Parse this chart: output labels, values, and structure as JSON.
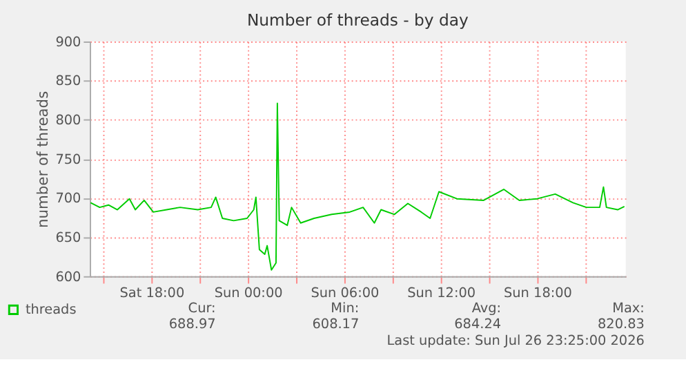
{
  "chart_data": {
    "type": "line",
    "title": "Number of threads - by day",
    "ylabel": "number of threads",
    "x": [
      "2026-07-25T14:13",
      "2026-07-25T14:47",
      "2026-07-25T15:20",
      "2026-07-25T15:53",
      "2026-07-25T16:38",
      "2026-07-25T17:00",
      "2026-07-25T17:33",
      "2026-07-25T18:07",
      "2026-07-25T18:57",
      "2026-07-25T19:47",
      "2026-07-25T20:53",
      "2026-07-25T21:43",
      "2026-07-25T22:00",
      "2026-07-25T22:25",
      "2026-07-25T23:07",
      "2026-07-25T23:57",
      "2026-07-26T00:22",
      "2026-07-26T00:30",
      "2026-07-26T00:43",
      "2026-07-26T01:03",
      "2026-07-26T01:12",
      "2026-07-26T01:28",
      "2026-07-26T01:45",
      "2026-07-26T01:50",
      "2026-07-26T01:57",
      "2026-07-26T02:27",
      "2026-07-26T02:43",
      "2026-07-26T03:17",
      "2026-07-26T04:07",
      "2026-07-26T05:13",
      "2026-07-26T06:20",
      "2026-07-26T07:10",
      "2026-07-26T07:52",
      "2026-07-26T08:17",
      "2026-07-26T09:07",
      "2026-07-26T09:57",
      "2026-07-26T10:47",
      "2026-07-26T11:20",
      "2026-07-26T11:53",
      "2026-07-26T13:00",
      "2026-07-26T14:40",
      "2026-07-26T15:55",
      "2026-07-26T16:53",
      "2026-07-26T18:00",
      "2026-07-26T19:07",
      "2026-07-26T20:13",
      "2026-07-26T21:03",
      "2026-07-26T21:53",
      "2026-07-26T22:07",
      "2026-07-26T22:18",
      "2026-07-26T23:00",
      "2026-07-26T23:25"
    ],
    "series": [
      {
        "name": "threads",
        "color": "#00cc00",
        "values": [
          694,
          688,
          691,
          685,
          699,
          685,
          697,
          682,
          685,
          688,
          685,
          688,
          701,
          674,
          671,
          674,
          685,
          701,
          634,
          628,
          639,
          608,
          617,
          821,
          671,
          665,
          688,
          668,
          674,
          679,
          682,
          688,
          668,
          685,
          679,
          693,
          682,
          674,
          708,
          699,
          697,
          711,
          697,
          699,
          705,
          694,
          688,
          688,
          714,
          688,
          685,
          689
        ]
      }
    ],
    "xlim": [
      "2026-07-25T14:10",
      "2026-07-26T23:30"
    ],
    "xticks": [
      {
        "value": "2026-07-25T15:00",
        "label": null
      },
      {
        "value": "2026-07-25T18:00",
        "label": "Sat 18:00"
      },
      {
        "value": "2026-07-25T21:00",
        "label": null
      },
      {
        "value": "2026-07-26T00:00",
        "label": "Sun 00:00"
      },
      {
        "value": "2026-07-26T03:00",
        "label": null
      },
      {
        "value": "2026-07-26T06:00",
        "label": "Sun 06:00"
      },
      {
        "value": "2026-07-26T09:00",
        "label": null
      },
      {
        "value": "2026-07-26T12:00",
        "label": "Sun 12:00"
      },
      {
        "value": "2026-07-26T15:00",
        "label": null
      },
      {
        "value": "2026-07-26T18:00",
        "label": "Sun 18:00"
      },
      {
        "value": "2026-07-26T21:00",
        "label": null
      }
    ],
    "ylim": [
      600,
      900
    ],
    "yticks": [
      600,
      650,
      700,
      750,
      800,
      850,
      900
    ],
    "grid": true,
    "legend": "bottom left",
    "annotations": [
      "Cur:",
      "688.97",
      "Min:",
      "608.17",
      "Avg:",
      "684.24",
      "Max:",
      "820.83",
      "Last update: Sun Jul 26 23:25:00 2026"
    ]
  }
}
